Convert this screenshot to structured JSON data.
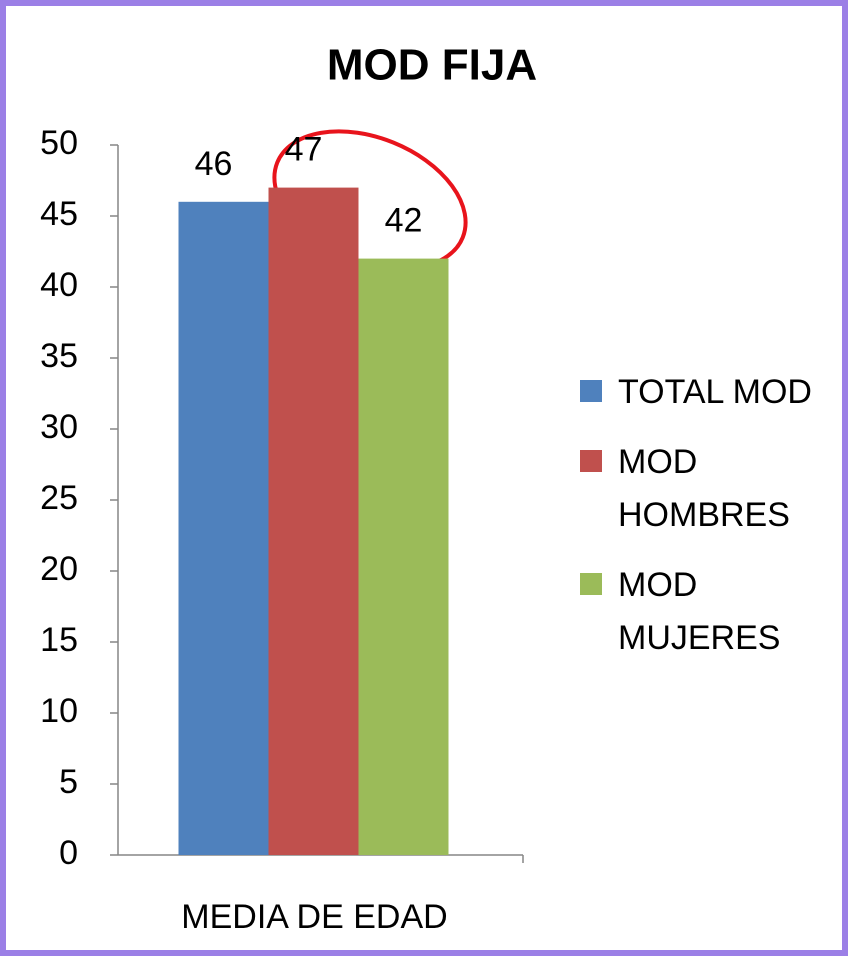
{
  "chart_data": {
    "type": "bar",
    "title": "MOD FIJA",
    "categories": [
      "MEDIA DE EDAD"
    ],
    "series": [
      {
        "name": "TOTAL MOD",
        "color": "#4f81bd",
        "values": [
          46
        ]
      },
      {
        "name": "MOD HOMBRES",
        "color": "#c0504d",
        "values": [
          47
        ]
      },
      {
        "name": "MOD MUJERES",
        "color": "#9bbb59",
        "values": [
          42
        ]
      }
    ],
    "ylim": [
      0,
      50
    ],
    "yticks": [
      0,
      5,
      10,
      15,
      20,
      25,
      30,
      35,
      40,
      45,
      50
    ],
    "grid": false,
    "legend": "right"
  }
}
